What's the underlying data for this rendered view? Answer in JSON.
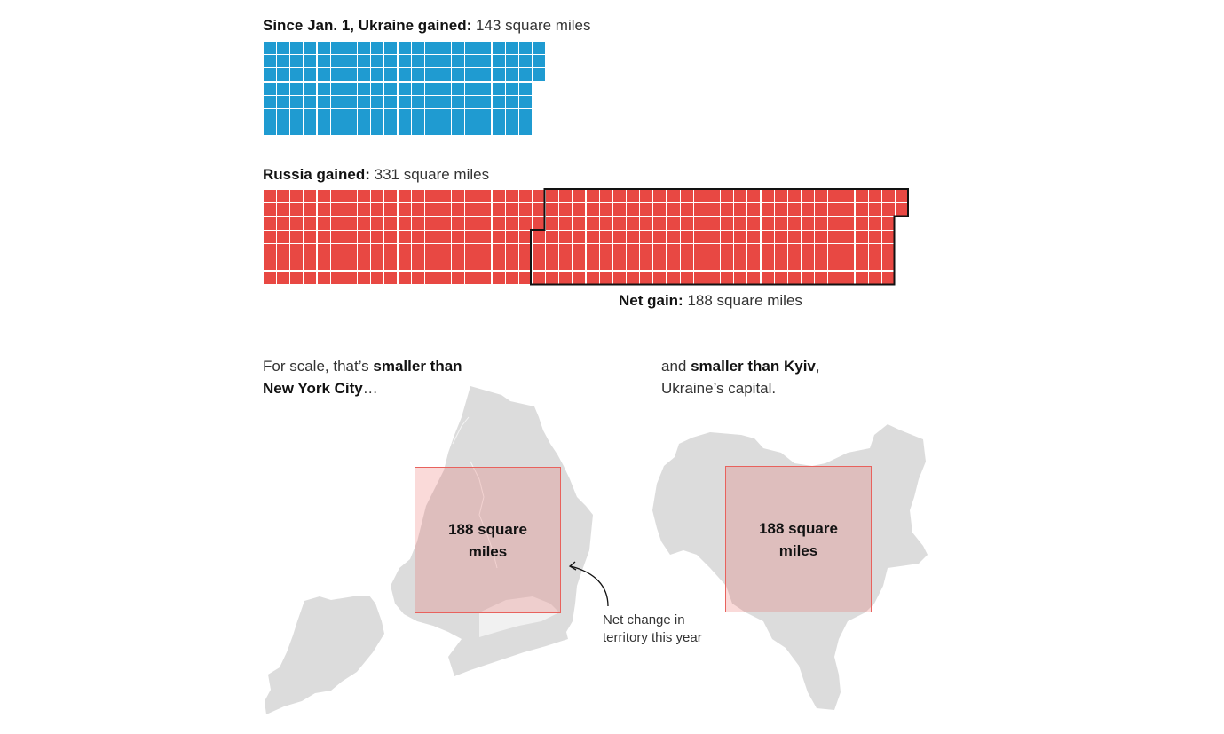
{
  "ukraine": {
    "label_bold": "Since Jan. 1, Ukraine gained:",
    "label_value": " 143 square miles",
    "color": "#1f9bd1"
  },
  "russia": {
    "label_bold": "Russia gained:",
    "label_value": " 331 square miles",
    "color": "#e84843"
  },
  "net": {
    "label_bold": "Net gain:",
    "label_value": " 188 square miles"
  },
  "scale": {
    "nyc_caption_pre": "For scale, that’s ",
    "nyc_caption_bold1": "smaller than",
    "nyc_caption_bold2": "New York City",
    "nyc_caption_post": "…",
    "kyiv_caption_pre": "and ",
    "kyiv_caption_bold": "smaller than Kyiv",
    "kyiv_caption_post": ",",
    "kyiv_caption_line2": "Ukraine’s capital.",
    "box_label": "188 square miles",
    "annotation_line1": "Net change in",
    "annotation_line2": "territory this year"
  },
  "chart_data": {
    "type": "waffle",
    "unit": "1 square = 1 square mile",
    "series": [
      {
        "name": "Ukraine gained since Jan. 1",
        "value": 143,
        "unit": "square miles",
        "rows": 7,
        "row_lengths": [
          21,
          21,
          21,
          20,
          20,
          20,
          20
        ],
        "color": "#1f9bd1"
      },
      {
        "name": "Russia gained",
        "value": 331,
        "unit": "square miles",
        "rows": 7,
        "row_lengths": [
          48,
          48,
          47,
          47,
          47,
          47,
          47
        ],
        "color": "#e84843"
      },
      {
        "name": "Net gain (Russia)",
        "value": 188,
        "unit": "square miles",
        "highlighted": "outlined portion of Russia grid"
      }
    ],
    "comparisons": [
      {
        "place": "New York City",
        "relation": "smaller than",
        "box_area": 188
      },
      {
        "place": "Kyiv",
        "relation": "smaller than",
        "box_area": 188
      }
    ],
    "annotations": [
      "Net change in territory this year"
    ]
  }
}
